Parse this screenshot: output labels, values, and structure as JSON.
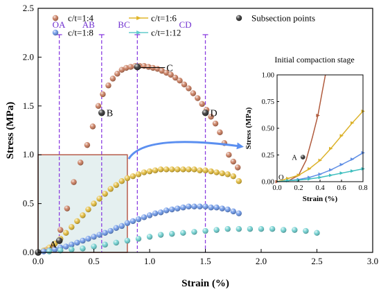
{
  "chart_data": [
    {
      "type": "scatter",
      "xlabel": "Strain (%)",
      "ylabel": "Stress (MPa)",
      "xlim": [
        0,
        3.0
      ],
      "ylim": [
        0,
        2.5
      ],
      "x_ticks": [
        "0.0",
        "0.5",
        "1.0",
        "1.5",
        "2.0",
        "2.5",
        "3.0"
      ],
      "y_ticks": [
        "0.0",
        "0.5",
        "1.0",
        "1.5",
        "2.0",
        "2.5"
      ],
      "legend_placement": "top",
      "series": [
        {
          "name": "c/t=1:4",
          "color": "#c4704f",
          "x": [
            0.0,
            0.08,
            0.14,
            0.2,
            0.26,
            0.32,
            0.38,
            0.44,
            0.49,
            0.54,
            0.58,
            0.63,
            0.67,
            0.71,
            0.75,
            0.79,
            0.83,
            0.87,
            0.91,
            0.95,
            0.99,
            1.03,
            1.07,
            1.11,
            1.15,
            1.19,
            1.23,
            1.27,
            1.31,
            1.35,
            1.39,
            1.43,
            1.47,
            1.51,
            1.55,
            1.59,
            1.63,
            1.67,
            1.71,
            1.75,
            1.79
          ],
          "y": [
            0.0,
            0.03,
            0.08,
            0.23,
            0.45,
            0.72,
            0.92,
            1.1,
            1.29,
            1.5,
            1.62,
            1.71,
            1.78,
            1.83,
            1.87,
            1.89,
            1.9,
            1.91,
            1.91,
            1.91,
            1.9,
            1.89,
            1.88,
            1.86,
            1.84,
            1.82,
            1.79,
            1.76,
            1.72,
            1.68,
            1.63,
            1.58,
            1.52,
            1.46,
            1.39,
            1.32,
            1.23,
            1.12,
            1.0,
            0.93,
            0.87
          ]
        },
        {
          "name": "c/t=1:6",
          "color": "#e0b52a",
          "x": [
            0.0,
            0.05,
            0.1,
            0.15,
            0.2,
            0.25,
            0.3,
            0.35,
            0.4,
            0.45,
            0.5,
            0.55,
            0.6,
            0.65,
            0.7,
            0.75,
            0.8,
            0.85,
            0.9,
            0.95,
            1.0,
            1.05,
            1.1,
            1.15,
            1.2,
            1.25,
            1.3,
            1.35,
            1.4,
            1.45,
            1.5,
            1.55,
            1.6,
            1.65,
            1.7,
            1.75,
            1.8
          ],
          "y": [
            0.0,
            0.02,
            0.05,
            0.09,
            0.14,
            0.2,
            0.26,
            0.32,
            0.38,
            0.44,
            0.5,
            0.55,
            0.6,
            0.65,
            0.69,
            0.73,
            0.76,
            0.78,
            0.8,
            0.82,
            0.83,
            0.84,
            0.85,
            0.85,
            0.85,
            0.85,
            0.85,
            0.85,
            0.85,
            0.84,
            0.84,
            0.83,
            0.82,
            0.81,
            0.8,
            0.78,
            0.73
          ]
        },
        {
          "name": "c/t=1:8",
          "color": "#5f8ee5",
          "x": [
            0.0,
            0.05,
            0.1,
            0.15,
            0.2,
            0.25,
            0.3,
            0.35,
            0.4,
            0.45,
            0.5,
            0.55,
            0.6,
            0.65,
            0.7,
            0.75,
            0.8,
            0.85,
            0.9,
            0.95,
            1.0,
            1.05,
            1.1,
            1.15,
            1.2,
            1.25,
            1.3,
            1.35,
            1.4,
            1.45,
            1.5,
            1.55,
            1.6,
            1.65,
            1.7,
            1.75,
            1.8
          ],
          "y": [
            0.0,
            0.01,
            0.02,
            0.03,
            0.05,
            0.06,
            0.08,
            0.1,
            0.12,
            0.14,
            0.16,
            0.18,
            0.2,
            0.22,
            0.25,
            0.27,
            0.3,
            0.32,
            0.34,
            0.36,
            0.38,
            0.4,
            0.41,
            0.43,
            0.44,
            0.45,
            0.46,
            0.47,
            0.47,
            0.47,
            0.47,
            0.46,
            0.46,
            0.45,
            0.44,
            0.42,
            0.4
          ]
        },
        {
          "name": "c/t=1:12",
          "color": "#62cccc",
          "x": [
            0.0,
            0.1,
            0.2,
            0.3,
            0.4,
            0.5,
            0.6,
            0.7,
            0.8,
            0.9,
            1.0,
            1.1,
            1.2,
            1.3,
            1.4,
            1.5,
            1.6,
            1.7,
            1.8,
            1.9,
            2.0,
            2.1,
            2.2,
            2.3,
            2.4,
            2.5
          ],
          "y": [
            0.0,
            0.01,
            0.02,
            0.03,
            0.04,
            0.06,
            0.08,
            0.1,
            0.12,
            0.14,
            0.16,
            0.18,
            0.19,
            0.2,
            0.21,
            0.22,
            0.23,
            0.24,
            0.24,
            0.24,
            0.24,
            0.24,
            0.23,
            0.23,
            0.22,
            0.2
          ]
        },
        {
          "name": "Subsection points",
          "color": "#222222",
          "x": [
            0.0,
            0.19,
            0.57,
            0.89,
            1.5
          ],
          "y": [
            0.0,
            0.12,
            1.43,
            1.9,
            1.43
          ],
          "labels": [
            "",
            "A",
            "B",
            "C",
            "D"
          ]
        }
      ],
      "stages": [
        {
          "label": "OA",
          "x": 0.19
        },
        {
          "label": "AB",
          "x": 0.57
        },
        {
          "label": "BC",
          "x": 0.89
        },
        {
          "label": "CD",
          "x": 1.5
        }
      ],
      "highlight_region": {
        "x": [
          0,
          0.8
        ],
        "y": [
          0,
          1.0
        ]
      }
    },
    {
      "type": "line",
      "title": "Initial compaction stage",
      "xlabel": "Strain (%)",
      "ylabel": "Stress (MPa)",
      "xlim": [
        0,
        0.8
      ],
      "ylim": [
        0,
        1.0
      ],
      "x_ticks": [
        "0.0",
        "0.2",
        "0.4",
        "0.6",
        "0.8"
      ],
      "y_ticks": [
        "0.00",
        "0.25",
        "0.50",
        "0.75",
        "1.00"
      ],
      "series": [
        {
          "name": "c/t=1:4",
          "color": "#b05a3c",
          "x": [
            0.0,
            0.1,
            0.2,
            0.27,
            0.33,
            0.38,
            0.42,
            0.45
          ],
          "y": [
            0.0,
            0.005,
            0.06,
            0.2,
            0.42,
            0.62,
            0.84,
            1.0
          ],
          "markers_x": [
            0.0,
            0.2,
            0.38
          ]
        },
        {
          "name": "c/t=1:6",
          "color": "#dcb22a",
          "x": [
            0.0,
            0.1,
            0.2,
            0.3,
            0.4,
            0.5,
            0.6,
            0.7,
            0.8
          ],
          "y": [
            0.0,
            0.03,
            0.06,
            0.12,
            0.2,
            0.31,
            0.43,
            0.55,
            0.66
          ],
          "markers_x": [
            0.1,
            0.2,
            0.3,
            0.4,
            0.5,
            0.6,
            0.7,
            0.8
          ]
        },
        {
          "name": "c/t=1:8",
          "color": "#5f8ee5",
          "x": [
            0.0,
            0.1,
            0.2,
            0.3,
            0.4,
            0.5,
            0.6,
            0.7,
            0.8
          ],
          "y": [
            0.0,
            0.01,
            0.02,
            0.04,
            0.07,
            0.11,
            0.16,
            0.21,
            0.27
          ],
          "markers_x": [
            0.1,
            0.2,
            0.3,
            0.4,
            0.5,
            0.6,
            0.7,
            0.8
          ]
        },
        {
          "name": "c/t=1:12",
          "color": "#3fbfbf",
          "x": [
            0.0,
            0.1,
            0.2,
            0.3,
            0.4,
            0.5,
            0.6,
            0.7,
            0.8
          ],
          "y": [
            0.0,
            0.01,
            0.015,
            0.025,
            0.04,
            0.06,
            0.08,
            0.1,
            0.12
          ],
          "markers_x": [
            0.1,
            0.2,
            0.3,
            0.4,
            0.5,
            0.6,
            0.7,
            0.8
          ]
        }
      ],
      "point_labels": [
        {
          "label": "O",
          "x": 0.0,
          "y": 0.0
        },
        {
          "label": "A",
          "x": 0.24,
          "y": 0.23
        }
      ]
    }
  ]
}
